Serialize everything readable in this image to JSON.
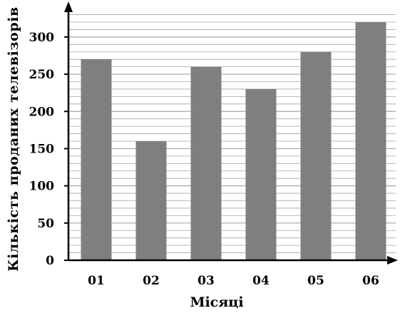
{
  "chart_data": {
    "type": "bar",
    "title": "",
    "xlabel": "Місяці",
    "ylabel": "Кількість проданих телевізорів",
    "categories": [
      "01",
      "02",
      "03",
      "04",
      "05",
      "06"
    ],
    "values": [
      270,
      160,
      260,
      230,
      280,
      320
    ],
    "ylim": [
      0,
      320
    ],
    "yticks": [
      0,
      50,
      100,
      150,
      200,
      250,
      300
    ],
    "minor_grid_step": 10,
    "grid": true,
    "bar_color": "#7f7f7f",
    "grid_color": "#a6a6a6"
  }
}
